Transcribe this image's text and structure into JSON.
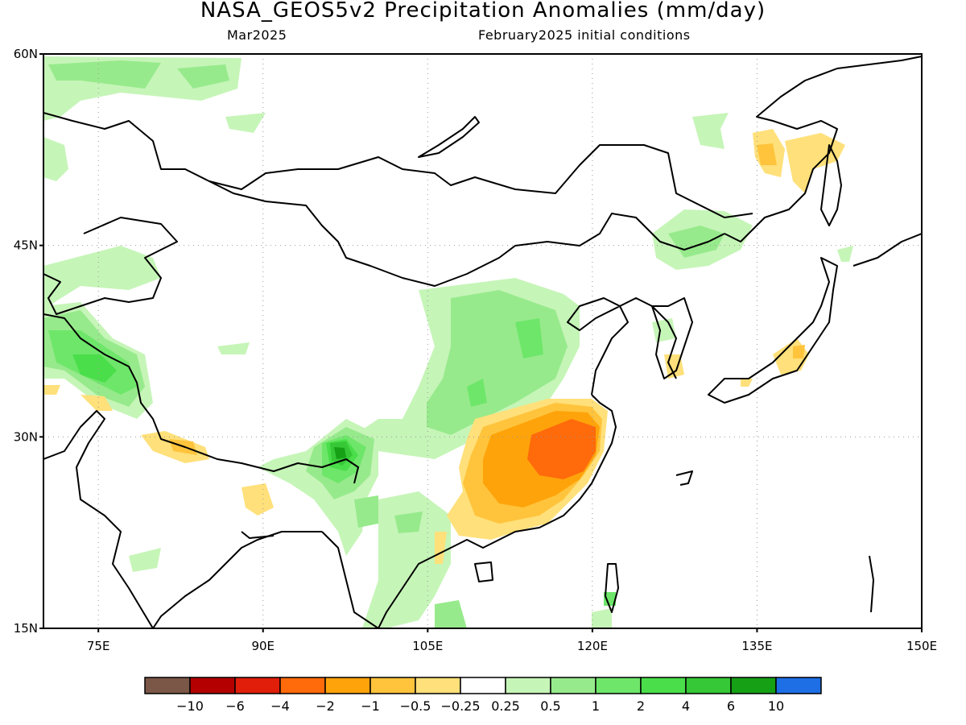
{
  "title": "NASA_GEOS5v2 Precipitation Anomalies (mm/day)",
  "subtitle_left": "Mar2025",
  "subtitle_right": "February2025 initial conditions",
  "map": {
    "lon_range": [
      70,
      150
    ],
    "lat_range": [
      15,
      60
    ],
    "lat_ticks": [
      {
        "value": 60,
        "label": "60N"
      },
      {
        "value": 45,
        "label": "45N"
      },
      {
        "value": 30,
        "label": "30N"
      },
      {
        "value": 15,
        "label": "15N"
      }
    ],
    "lon_ticks": [
      {
        "value": 75,
        "label": "75E"
      },
      {
        "value": 90,
        "label": "90E"
      },
      {
        "value": 105,
        "label": "105E"
      },
      {
        "value": 120,
        "label": "120E"
      },
      {
        "value": 135,
        "label": "135E"
      },
      {
        "value": 150,
        "label": "150E"
      }
    ],
    "grid": "dotted"
  },
  "colorbar": {
    "colors": [
      "#7b5747",
      "#b40000",
      "#e01e0a",
      "#ff6a0a",
      "#ffa30a",
      "#ffc43c",
      "#ffe07a",
      "#ffffff",
      "#c6f5b8",
      "#97ea8c",
      "#6ee66a",
      "#4ade4a",
      "#36c836",
      "#16a016",
      "#1e6ee6"
    ],
    "labels": [
      "−10",
      "−6",
      "−4",
      "−2",
      "−1",
      "−0.5",
      "−0.25",
      "0.25",
      "0.5",
      "1",
      "2",
      "4",
      "6",
      "10"
    ]
  },
  "chart_data": {
    "type": "heatmap",
    "title": "NASA_GEOS5v2 Precipitation Anomalies (mm/day)",
    "xlabel": "",
    "ylabel": "",
    "xlim": [
      70,
      150
    ],
    "ylim": [
      15,
      60
    ],
    "levels": [
      -10,
      -6,
      -4,
      -2,
      -1,
      -0.5,
      -0.25,
      0.25,
      0.5,
      1,
      2,
      4,
      6,
      10
    ],
    "regions": [
      {
        "lon": 97,
        "lat": 29,
        "value": 6
      },
      {
        "lon": 96,
        "lat": 28.5,
        "value": 4
      },
      {
        "lon": 76,
        "lat": 35,
        "value": 2
      },
      {
        "lon": 112,
        "lat": 36,
        "value": 1
      },
      {
        "lon": 113,
        "lat": 28,
        "value": -2
      },
      {
        "lon": 118,
        "lat": 29,
        "value": -4
      },
      {
        "lon": 88,
        "lat": 28,
        "value": -1
      },
      {
        "lon": 135,
        "lat": 52,
        "value": -0.5
      },
      {
        "lon": 80,
        "lat": 57,
        "value": 0.5
      },
      {
        "lon": 129,
        "lat": 46,
        "value": 0.5
      },
      {
        "lon": 121,
        "lat": 17,
        "value": 2
      }
    ]
  }
}
